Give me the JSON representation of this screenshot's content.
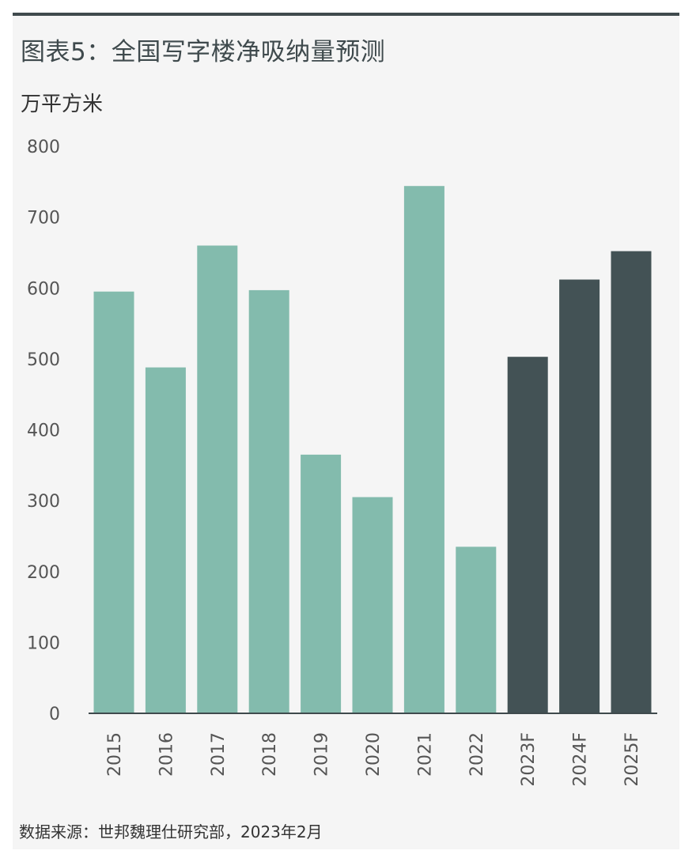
{
  "chart_title": "图表5：全国写字楼净吸纳量预测",
  "unit_label": "万平方米",
  "source_note": "数据来源：世邦魏理仕研究部，2023年2月",
  "colors": {
    "actual": "#83bbad",
    "forecast": "#435255",
    "axis": "#3f4a4d",
    "title": "#3f4a4d",
    "panel": "#f5f5f5"
  },
  "chart_data": {
    "type": "bar",
    "title": "图表5：全国写字楼净吸纳量预测",
    "xlabel": "",
    "ylabel": "万平方米",
    "ylim": [
      0,
      800
    ],
    "yticks": [
      0,
      100,
      200,
      300,
      400,
      500,
      600,
      700,
      800
    ],
    "grid": false,
    "legend": "none",
    "categories": [
      "2015",
      "2016",
      "2017",
      "2018",
      "2019",
      "2020",
      "2021",
      "2022",
      "2023F",
      "2024F",
      "2025F"
    ],
    "values": [
      595,
      488,
      660,
      597,
      365,
      305,
      744,
      235,
      503,
      612,
      652
    ],
    "forecast": [
      false,
      false,
      false,
      false,
      false,
      false,
      false,
      false,
      true,
      true,
      true
    ]
  }
}
